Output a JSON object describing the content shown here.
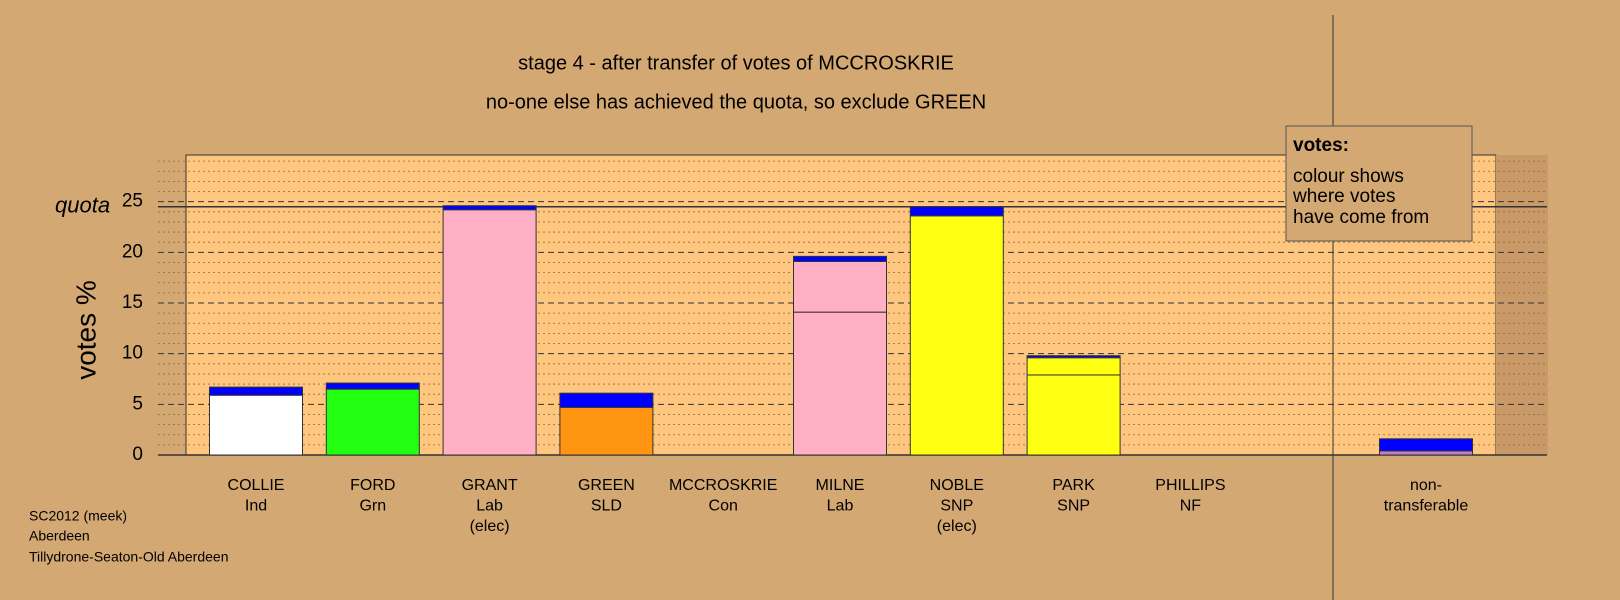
{
  "chart_data": {
    "type": "stacked_bar",
    "title": "stage 4 - after transfer of votes of MCCROSKRIE",
    "subtitle": "no-one else has achieved the quota, so exclude GREEN",
    "ylabel": "votes %",
    "categories": [
      [
        "COLLIE",
        "Ind"
      ],
      [
        "FORD",
        "Grn"
      ],
      [
        "GRANT",
        "Lab",
        "(elec)"
      ],
      [
        "GREEN",
        "SLD"
      ],
      [
        "MCCROSKRIE",
        "Con"
      ],
      [
        "MILNE",
        "Lab"
      ],
      [
        "NOBLE",
        "SNP",
        "(elec)"
      ],
      [
        "PARK",
        "SNP"
      ],
      [
        "PHILLIPS",
        "NF"
      ],
      [
        "non-",
        "transferable"
      ]
    ],
    "series": [
      {
        "colors": [
          "#ffffff",
          "#22ff11",
          "#ffb0c4",
          "#ff9410",
          "#ffb0c4",
          "#ffb0c4",
          "#ffff11",
          "#ffff11",
          "#ffff11",
          "#ffb0c4"
        ],
        "values": [
          5.9,
          6.5,
          24.2,
          4.7,
          0,
          14.1,
          23.6,
          7.9,
          0,
          0
        ]
      },
      {
        "colors": [
          "#ffffff",
          "#22ff11",
          "#ffb0c4",
          "#ff9410",
          "#ffb0c4",
          "#ffb0c4",
          "#ffff11",
          "#ffff11",
          "#ffff11",
          "#c080c8"
        ],
        "values": [
          0,
          0,
          0,
          0,
          0,
          5.0,
          0,
          1.7,
          0,
          0.4
        ]
      },
      {
        "colors": [
          "#0000ff",
          "#0000ff",
          "#0000ff",
          "#0000ff",
          "#0000ff",
          "#0000ff",
          "#0000ff",
          "#0000ff",
          "#0000ff",
          "#0000ff"
        ],
        "values": [
          0.8,
          0.6,
          0.4,
          1.4,
          0,
          0.5,
          0.9,
          0.2,
          0,
          1.2
        ]
      }
    ],
    "ylim": [
      0,
      30
    ],
    "yticks": [
      0,
      5,
      10,
      15,
      20,
      25
    ],
    "minor_yticks": [
      1,
      2,
      3,
      4,
      6,
      7,
      8,
      9,
      11,
      12,
      13,
      14,
      16,
      17,
      18,
      19,
      21,
      22,
      23,
      24,
      26,
      27,
      28,
      29
    ],
    "quota": {
      "value": 24.5,
      "label": "quota"
    },
    "legend": {
      "title": "votes:",
      "lines": [
        "colour shows",
        "where votes",
        "have come from"
      ]
    },
    "footer": [
      "SC2012 (meek)",
      "Aberdeen",
      "Tillydrone-Seaton-Old Aberdeen"
    ]
  }
}
